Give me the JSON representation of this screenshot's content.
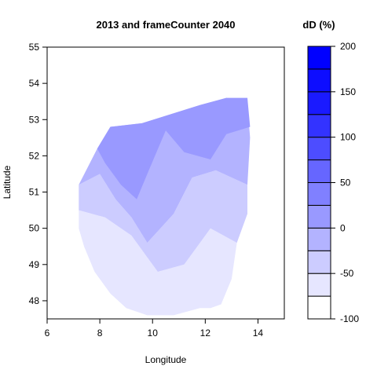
{
  "chart_data": {
    "type": "heatmap",
    "title": "2013 and frameCounter 2040",
    "xlabel": "Longitude",
    "ylabel": "Latitude",
    "xlim": [
      6,
      15
    ],
    "ylim": [
      47.5,
      55
    ],
    "x_ticks": [
      6,
      8,
      10,
      12,
      14
    ],
    "y_ticks": [
      48,
      49,
      50,
      51,
      52,
      53,
      54,
      55
    ],
    "grid": false,
    "legend": {
      "title": "dD (%)",
      "placement": "right",
      "range": [
        -100,
        200
      ],
      "ticks": [
        -100,
        -50,
        0,
        50,
        100,
        150,
        200
      ],
      "breaks": [
        -100,
        -75,
        -50,
        -25,
        0,
        25,
        50,
        75,
        100,
        125,
        150,
        175,
        200
      ],
      "colors": [
        "#ffffff",
        "#e6e6ff",
        "#ccccff",
        "#b3b3ff",
        "#9999ff",
        "#8080ff",
        "#6666ff",
        "#4d4dff",
        "#3333ff",
        "#1a1aff",
        "#0d0dff",
        "#0000ff"
      ]
    },
    "regions": [
      {
        "level": -62.5,
        "color": "#e6e6ff",
        "polygon": [
          [
            7.2,
            50.5
          ],
          [
            8.2,
            50.3
          ],
          [
            9.2,
            49.8
          ],
          [
            9.8,
            49.2
          ],
          [
            10.2,
            48.8
          ],
          [
            11.2,
            49.0
          ],
          [
            12.2,
            50.0
          ],
          [
            13.2,
            49.6
          ],
          [
            13.0,
            48.6
          ],
          [
            12.6,
            47.9
          ],
          [
            12.2,
            47.8
          ],
          [
            11.8,
            47.8
          ],
          [
            10.8,
            47.6
          ],
          [
            9.8,
            47.6
          ],
          [
            9.0,
            47.8
          ],
          [
            8.4,
            48.2
          ],
          [
            7.8,
            48.8
          ],
          [
            7.4,
            49.5
          ],
          [
            7.2,
            50.0
          ]
        ]
      },
      {
        "level": -37.5,
        "color": "#ccccff",
        "polygon": [
          [
            7.2,
            51.2
          ],
          [
            8.0,
            51.5
          ],
          [
            8.6,
            50.8
          ],
          [
            9.2,
            50.3
          ],
          [
            9.8,
            49.6
          ],
          [
            10.8,
            50.4
          ],
          [
            11.5,
            51.4
          ],
          [
            12.4,
            51.6
          ],
          [
            13.6,
            51.2
          ],
          [
            13.6,
            50.4
          ],
          [
            13.2,
            49.6
          ],
          [
            12.2,
            50.0
          ],
          [
            11.2,
            49.0
          ],
          [
            10.2,
            48.8
          ],
          [
            9.8,
            49.2
          ],
          [
            9.2,
            49.8
          ],
          [
            8.2,
            50.3
          ],
          [
            7.2,
            50.5
          ]
        ]
      },
      {
        "level": -12.5,
        "color": "#b3b3ff",
        "polygon": [
          [
            7.9,
            52.2
          ],
          [
            8.4,
            52.8
          ],
          [
            9.6,
            52.9
          ],
          [
            11.8,
            53.4
          ],
          [
            12.8,
            53.6
          ],
          [
            13.6,
            53.4
          ],
          [
            13.7,
            52.5
          ],
          [
            13.6,
            51.2
          ],
          [
            12.4,
            51.6
          ],
          [
            11.5,
            51.4
          ],
          [
            10.8,
            50.4
          ],
          [
            9.8,
            49.6
          ],
          [
            9.2,
            50.3
          ],
          [
            8.6,
            50.8
          ],
          [
            8.0,
            51.5
          ],
          [
            7.2,
            51.2
          ]
        ]
      },
      {
        "level": 12.5,
        "color": "#9999ff",
        "polygon": [
          [
            8.4,
            52.8
          ],
          [
            9.6,
            52.9
          ],
          [
            11.8,
            53.4
          ],
          [
            12.8,
            53.6
          ],
          [
            13.6,
            53.6
          ],
          [
            13.7,
            52.8
          ],
          [
            12.8,
            52.6
          ],
          [
            12.2,
            51.9
          ],
          [
            11.2,
            52.1
          ],
          [
            10.5,
            52.7
          ],
          [
            9.8,
            51.5
          ],
          [
            9.4,
            50.8
          ],
          [
            8.8,
            51.2
          ],
          [
            8.2,
            51.8
          ],
          [
            7.9,
            52.2
          ]
        ]
      }
    ]
  }
}
